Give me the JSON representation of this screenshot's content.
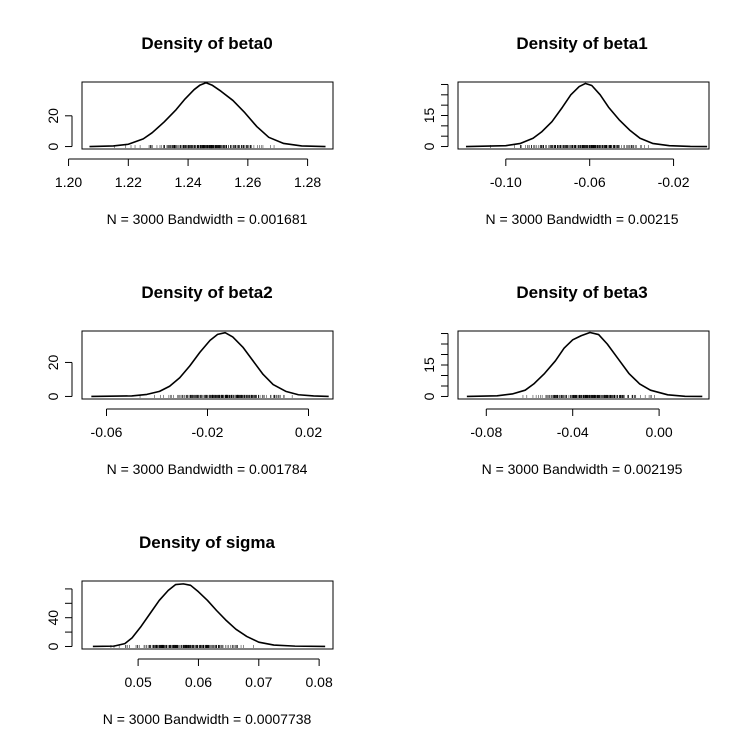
{
  "chart_data": [
    {
      "type": "line",
      "title": "Density of beta0",
      "xlabel": "N = 3000   Bandwidth = 0.001681",
      "x_ticks": [
        1.2,
        1.22,
        1.24,
        1.26,
        1.28
      ],
      "x_tick_labels": [
        "1.20",
        "1.22",
        "1.24",
        "1.26",
        "1.28"
      ],
      "y_ticks": [
        0,
        20
      ],
      "y_tick_labels": [
        "0",
        "20"
      ],
      "xlim": [
        1.2045,
        1.2885
      ],
      "ylim": [
        -1.6,
        42
      ],
      "x": [
        1.207,
        1.215,
        1.22,
        1.225,
        1.228,
        1.232,
        1.236,
        1.239,
        1.242,
        1.244,
        1.246,
        1.248,
        1.251,
        1.255,
        1.259,
        1.263,
        1.267,
        1.272,
        1.278,
        1.286
      ],
      "y": [
        0,
        0.4,
        1.5,
        5,
        9,
        16,
        24,
        31,
        37,
        40,
        41.5,
        40,
        36,
        30,
        22,
        13,
        6,
        2,
        0.4,
        0
      ]
    },
    {
      "type": "line",
      "title": "Density of beta1",
      "xlabel": "N = 3000   Bandwidth = 0.00215",
      "x_ticks": [
        -0.1,
        -0.06,
        -0.02
      ],
      "x_tick_labels": [
        "-0.10",
        "-0.06",
        "-0.02"
      ],
      "y_ticks": [
        0,
        5,
        10,
        15,
        20,
        25,
        30
      ],
      "y_tick_labels": [
        "0",
        "",
        "",
        "15",
        "",
        "",
        ""
      ],
      "xlim": [
        -0.1228,
        -0.0031
      ],
      "ylim": [
        -1.2,
        31.2
      ],
      "x": [
        -0.119,
        -0.1,
        -0.093,
        -0.087,
        -0.083,
        -0.078,
        -0.073,
        -0.069,
        -0.065,
        -0.062,
        -0.059,
        -0.055,
        -0.051,
        -0.046,
        -0.041,
        -0.036,
        -0.03,
        -0.022,
        -0.012,
        -0.004
      ],
      "y": [
        0,
        0.4,
        1.5,
        4,
        7,
        12,
        19,
        25,
        29,
        30.5,
        29.5,
        25,
        19,
        13,
        8,
        4,
        1.5,
        0.4,
        0.05,
        0
      ]
    },
    {
      "type": "line",
      "title": "Density of beta2",
      "xlabel": "N = 3000   Bandwidth = 0.001784",
      "x_ticks": [
        -0.06,
        -0.02,
        0.02
      ],
      "x_tick_labels": [
        "-0.06",
        "-0.02",
        "0.02"
      ],
      "y_ticks": [
        0,
        20
      ],
      "y_tick_labels": [
        "0",
        "20"
      ],
      "xlim": [
        -0.0697,
        0.0297
      ],
      "ylim": [
        -1.5,
        38.5
      ],
      "x": [
        -0.066,
        -0.05,
        -0.044,
        -0.039,
        -0.035,
        -0.031,
        -0.027,
        -0.023,
        -0.019,
        -0.016,
        -0.013,
        -0.01,
        -0.006,
        -0.002,
        0.002,
        0.006,
        0.011,
        0.016,
        0.022,
        0.028
      ],
      "y": [
        0,
        0.3,
        1.2,
        3,
        6,
        11,
        18,
        26,
        33,
        36.5,
        37.5,
        35,
        29,
        21,
        13,
        7,
        3,
        1,
        0.3,
        0
      ]
    },
    {
      "type": "line",
      "title": "Density of beta3",
      "xlabel": "N = 3000   Bandwidth = 0.002195",
      "x_ticks": [
        -0.08,
        -0.04,
        0.0
      ],
      "x_tick_labels": [
        "-0.08",
        "-0.04",
        "0.00"
      ],
      "y_ticks": [
        0,
        5,
        10,
        15,
        20,
        25,
        30
      ],
      "y_tick_labels": [
        "0",
        "",
        "",
        "15",
        "",
        "",
        ""
      ],
      "xlim": [
        -0.0931,
        0.0231
      ],
      "ylim": [
        -1.2,
        31.2
      ],
      "x": [
        -0.089,
        -0.075,
        -0.068,
        -0.062,
        -0.058,
        -0.053,
        -0.048,
        -0.044,
        -0.04,
        -0.036,
        -0.032,
        -0.028,
        -0.024,
        -0.019,
        -0.014,
        -0.009,
        -0.004,
        0.004,
        0.012,
        0.02
      ],
      "y": [
        0,
        0.3,
        1.2,
        3,
        6,
        11,
        17,
        23,
        27,
        29,
        30.5,
        29.5,
        25,
        18,
        11,
        6,
        3,
        0.8,
        0.1,
        0
      ]
    },
    {
      "type": "line",
      "title": "Density of sigma",
      "xlabel": "N = 3000   Bandwidth = 0.0007738",
      "x_ticks": [
        0.05,
        0.06,
        0.07,
        0.08
      ],
      "x_tick_labels": [
        "0.05",
        "0.06",
        "0.07",
        "0.08"
      ],
      "y_ticks": [
        0,
        20,
        40,
        60,
        80
      ],
      "y_tick_labels": [
        "0",
        "",
        "40",
        "",
        ""
      ],
      "xlim": [
        0.0407,
        0.0823
      ],
      "ylim": [
        -3.5,
        91
      ],
      "x": [
        0.0425,
        0.046,
        0.0478,
        0.049,
        0.0505,
        0.052,
        0.0535,
        0.055,
        0.0562,
        0.0575,
        0.0587,
        0.06,
        0.0615,
        0.063,
        0.0645,
        0.0662,
        0.068,
        0.07,
        0.0725,
        0.076,
        0.081
      ],
      "y": [
        0,
        0.5,
        4,
        12,
        28,
        46,
        64,
        78,
        86,
        87,
        85,
        76,
        64,
        50,
        37,
        24,
        14,
        6,
        2,
        0.5,
        0
      ]
    }
  ]
}
